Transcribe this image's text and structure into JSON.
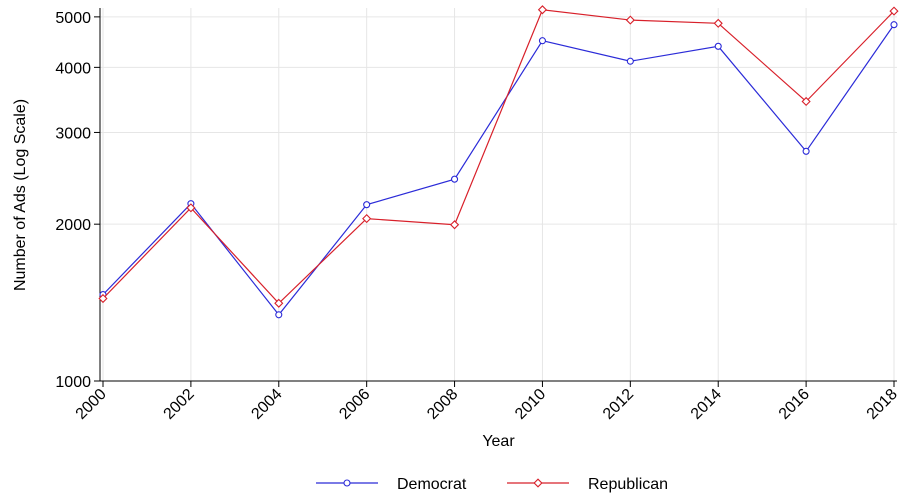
{
  "chart_data": {
    "type": "line",
    "title": "",
    "xlabel": "Year",
    "ylabel": "Number of Ads (Log Scale)",
    "y_scale": "log",
    "ylim": [
      1000,
      5200
    ],
    "y_ticks": [
      1000,
      2000,
      3000,
      4000,
      5000
    ],
    "y_tick_labels": [
      "1000",
      "2000",
      "3000",
      "4000",
      "5000"
    ],
    "x": [
      2000,
      2002,
      2004,
      2006,
      2008,
      2010,
      2012,
      2014,
      2016,
      2018
    ],
    "x_tick_labels": [
      "2000",
      "2002",
      "2004",
      "2006",
      "2008",
      "2010",
      "2012",
      "2014",
      "2016",
      "2018"
    ],
    "grid": true,
    "legend_position": "bottom",
    "series": [
      {
        "name": "Democrat",
        "color": "#2b2bd8",
        "marker": "circle",
        "values": [
          1465,
          2190,
          1340,
          2180,
          2440,
          4500,
          4110,
          4390,
          2760,
          4830
        ]
      },
      {
        "name": "Republican",
        "color": "#d8202a",
        "marker": "diamond",
        "values": [
          1440,
          2150,
          1410,
          2050,
          1995,
          5160,
          4930,
          4860,
          3440,
          5130
        ]
      }
    ]
  }
}
